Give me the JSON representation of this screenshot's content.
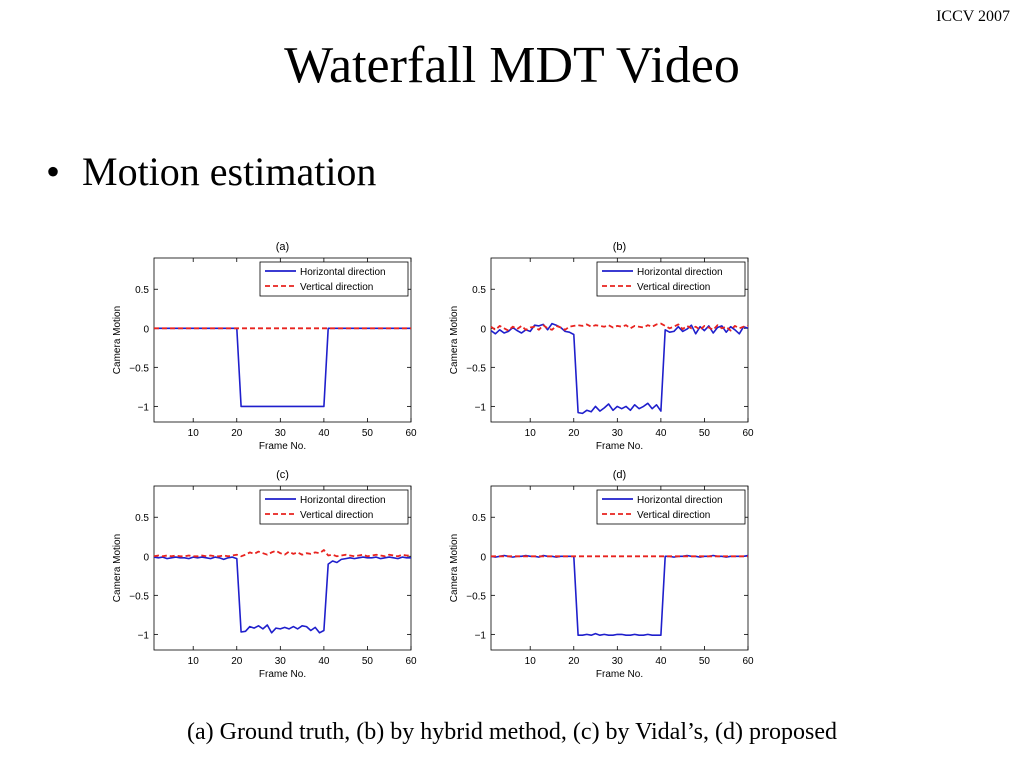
{
  "header": {
    "conference": "ICCV 2007",
    "title": "Waterfall MDT Video"
  },
  "bullets": [
    {
      "marker": "•",
      "text": "Motion estimation"
    }
  ],
  "caption": "(a) Ground truth, (b) by hybrid method, (c) by Vidal’s, (d) proposed",
  "colors": {
    "horizontal": "#1f1fcc",
    "vertical": "#e8231f"
  },
  "chart_data": [
    {
      "type": "line",
      "title": "(a)",
      "xlabel": "Frame No.",
      "ylabel": "Camera Motion",
      "xlim": [
        1,
        60
      ],
      "ylim": [
        -1.2,
        0.9
      ],
      "xticks": [
        10,
        20,
        30,
        40,
        50,
        60
      ],
      "yticks": [
        -1,
        -0.5,
        0,
        0.5
      ],
      "ytick_labels": [
        "−1",
        "−0.5",
        "0",
        "0.5"
      ],
      "legend": "top-right",
      "grid": false,
      "series": [
        {
          "name": "Horizontal direction",
          "style": "solid",
          "color": "#1f1fcc",
          "x": [
            1,
            2,
            3,
            4,
            5,
            6,
            7,
            8,
            9,
            10,
            11,
            12,
            13,
            14,
            15,
            16,
            17,
            18,
            19,
            20,
            21,
            22,
            23,
            24,
            25,
            26,
            27,
            28,
            29,
            30,
            31,
            32,
            33,
            34,
            35,
            36,
            37,
            38,
            39,
            40,
            41,
            42,
            43,
            44,
            45,
            46,
            47,
            48,
            49,
            50,
            51,
            52,
            53,
            54,
            55,
            56,
            57,
            58,
            59,
            60
          ],
          "y": [
            0,
            0,
            0,
            0,
            0,
            0,
            0,
            0,
            0,
            0,
            0,
            0,
            0,
            0,
            0,
            0,
            0,
            0,
            0,
            0,
            -1,
            -1,
            -1,
            -1,
            -1,
            -1,
            -1,
            -1,
            -1,
            -1,
            -1,
            -1,
            -1,
            -1,
            -1,
            -1,
            -1,
            -1,
            -1,
            -1,
            0,
            0,
            0,
            0,
            0,
            0,
            0,
            0,
            0,
            0,
            0,
            0,
            0,
            0,
            0,
            0,
            0,
            0,
            0,
            0
          ]
        },
        {
          "name": "Vertical direction",
          "style": "dashed",
          "color": "#e8231f",
          "x": [
            1,
            60
          ],
          "y": [
            0,
            0
          ]
        }
      ]
    },
    {
      "type": "line",
      "title": "(b)",
      "xlabel": "Frame No.",
      "ylabel": "Camera Motion",
      "xlim": [
        1,
        60
      ],
      "ylim": [
        -1.2,
        0.9
      ],
      "xticks": [
        10,
        20,
        30,
        40,
        50,
        60
      ],
      "yticks": [
        -1,
        -0.5,
        0,
        0.5
      ],
      "ytick_labels": [
        "−1",
        "−0.5",
        "0",
        "0.5"
      ],
      "legend": "top-right",
      "grid": false,
      "series": [
        {
          "name": "Horizontal direction",
          "style": "solid",
          "color": "#1f1fcc",
          "x": [
            1,
            2,
            3,
            4,
            5,
            6,
            7,
            8,
            9,
            10,
            11,
            12,
            13,
            14,
            15,
            16,
            17,
            18,
            19,
            20,
            21,
            22,
            23,
            24,
            25,
            26,
            27,
            28,
            29,
            30,
            31,
            32,
            33,
            34,
            35,
            36,
            37,
            38,
            39,
            40,
            41,
            42,
            43,
            44,
            45,
            46,
            47,
            48,
            49,
            50,
            51,
            52,
            53,
            54,
            55,
            56,
            57,
            58,
            59,
            60
          ],
          "y": [
            -0.03,
            -0.07,
            -0.02,
            -0.06,
            -0.04,
            0.01,
            -0.03,
            -0.06,
            -0.02,
            -0.04,
            0.04,
            0.03,
            0.05,
            -0.02,
            0.06,
            0.04,
            0.01,
            -0.04,
            -0.05,
            -0.08,
            -1.08,
            -1.09,
            -1.05,
            -1.07,
            -1.0,
            -1.06,
            -1.02,
            -0.97,
            -1.05,
            -1.0,
            -1.03,
            -1.0,
            -1.05,
            -0.98,
            -1.03,
            -1.0,
            -0.96,
            -1.03,
            -0.98,
            -1.06,
            -0.02,
            -0.05,
            -0.04,
            0.02,
            -0.04,
            -0.01,
            0.04,
            -0.07,
            0.02,
            -0.03,
            0.03,
            -0.06,
            0.01,
            0.03,
            -0.05,
            0.02,
            -0.02,
            -0.07,
            0.02,
            0.0
          ]
        },
        {
          "name": "Vertical direction",
          "style": "dashed",
          "color": "#e8231f",
          "x": [
            1,
            2,
            3,
            4,
            5,
            6,
            7,
            8,
            9,
            10,
            11,
            12,
            13,
            14,
            15,
            16,
            17,
            18,
            19,
            20,
            21,
            22,
            23,
            24,
            25,
            26,
            27,
            28,
            29,
            30,
            31,
            32,
            33,
            34,
            35,
            36,
            37,
            38,
            39,
            40,
            41,
            42,
            43,
            44,
            45,
            46,
            47,
            48,
            49,
            50,
            51,
            52,
            53,
            54,
            55,
            56,
            57,
            58,
            59,
            60
          ],
          "y": [
            0.02,
            -0.02,
            0.03,
            0.0,
            -0.03,
            0.02,
            -0.01,
            0.03,
            -0.02,
            0.01,
            0.02,
            -0.02,
            0.04,
            0.0,
            -0.02,
            0.03,
            0.01,
            -0.02,
            0.02,
            0.03,
            0.04,
            0.03,
            0.05,
            0.02,
            0.04,
            0.03,
            0.02,
            0.04,
            0.01,
            0.03,
            0.02,
            0.04,
            0.0,
            0.03,
            0.02,
            0.01,
            0.04,
            0.02,
            0.05,
            0.06,
            0.03,
            0.0,
            0.02,
            0.05,
            -0.01,
            0.03,
            0.0,
            0.02,
            -0.02,
            0.03,
            0.01,
            -0.02,
            0.04,
            0.0,
            0.02,
            -0.03,
            0.03,
            0.0,
            0.02,
            0.03
          ]
        }
      ]
    },
    {
      "type": "line",
      "title": "(c)",
      "xlabel": "Frame No.",
      "ylabel": "Camera Motion",
      "xlim": [
        1,
        60
      ],
      "ylim": [
        -1.2,
        0.9
      ],
      "xticks": [
        10,
        20,
        30,
        40,
        50,
        60
      ],
      "yticks": [
        -1,
        -0.5,
        0,
        0.5
      ],
      "ytick_labels": [
        "−1",
        "−0.5",
        "0",
        "0.5"
      ],
      "legend": "top-right",
      "grid": false,
      "series": [
        {
          "name": "Horizontal direction",
          "style": "solid",
          "color": "#1f1fcc",
          "x": [
            1,
            2,
            3,
            4,
            5,
            6,
            7,
            8,
            9,
            10,
            11,
            12,
            13,
            14,
            15,
            16,
            17,
            18,
            19,
            20,
            21,
            22,
            23,
            24,
            25,
            26,
            27,
            28,
            29,
            30,
            31,
            32,
            33,
            34,
            35,
            36,
            37,
            38,
            39,
            40,
            41,
            42,
            43,
            44,
            45,
            46,
            47,
            48,
            49,
            50,
            51,
            52,
            53,
            54,
            55,
            56,
            57,
            58,
            59,
            60
          ],
          "y": [
            -0.01,
            -0.02,
            -0.01,
            -0.03,
            -0.02,
            -0.01,
            -0.02,
            -0.02,
            -0.03,
            -0.01,
            -0.02,
            -0.01,
            -0.02,
            -0.03,
            -0.01,
            -0.02,
            -0.04,
            -0.02,
            -0.01,
            -0.03,
            -0.97,
            -0.96,
            -0.9,
            -0.92,
            -0.89,
            -0.93,
            -0.88,
            -0.98,
            -0.92,
            -0.93,
            -0.91,
            -0.93,
            -0.9,
            -0.93,
            -0.89,
            -0.9,
            -0.95,
            -0.91,
            -0.98,
            -0.95,
            -0.1,
            -0.06,
            -0.08,
            -0.04,
            -0.03,
            -0.02,
            -0.03,
            -0.02,
            -0.01,
            -0.02,
            -0.02,
            -0.01,
            -0.03,
            -0.02,
            -0.01,
            -0.02,
            -0.03,
            -0.01,
            -0.02,
            -0.02
          ]
        },
        {
          "name": "Vertical direction",
          "style": "dashed",
          "color": "#e8231f",
          "x": [
            1,
            2,
            3,
            4,
            5,
            6,
            7,
            8,
            9,
            10,
            11,
            12,
            13,
            14,
            15,
            16,
            17,
            18,
            19,
            20,
            21,
            22,
            23,
            24,
            25,
            26,
            27,
            28,
            29,
            30,
            31,
            32,
            33,
            34,
            35,
            36,
            37,
            38,
            39,
            40,
            41,
            42,
            43,
            44,
            45,
            46,
            47,
            48,
            49,
            50,
            51,
            52,
            53,
            54,
            55,
            56,
            57,
            58,
            59,
            60
          ],
          "y": [
            0.0,
            0.01,
            0.0,
            0.01,
            0.0,
            0.01,
            0.0,
            0.0,
            0.01,
            0.0,
            0.0,
            0.01,
            0.0,
            0.01,
            0.0,
            0.0,
            0.01,
            0.0,
            0.01,
            0.02,
            0.0,
            0.02,
            0.05,
            0.03,
            0.06,
            0.04,
            0.02,
            0.05,
            0.07,
            0.04,
            0.02,
            0.06,
            0.03,
            0.05,
            0.02,
            0.04,
            0.03,
            0.05,
            0.04,
            0.08,
            0.01,
            0.02,
            0.0,
            0.01,
            0.02,
            0.01,
            0.0,
            0.01,
            0.02,
            0.0,
            0.01,
            0.02,
            0.01,
            0.0,
            0.02,
            0.01,
            0.0,
            0.02,
            0.01,
            0.01
          ]
        }
      ]
    },
    {
      "type": "line",
      "title": "(d)",
      "xlabel": "Frame No.",
      "ylabel": "Camera Motion",
      "xlim": [
        1,
        60
      ],
      "ylim": [
        -1.2,
        0.9
      ],
      "xticks": [
        10,
        20,
        30,
        40,
        50,
        60
      ],
      "yticks": [
        -1,
        -0.5,
        0,
        0.5
      ],
      "ytick_labels": [
        "−1",
        "−0.5",
        "0",
        "0.5"
      ],
      "legend": "top-right",
      "grid": false,
      "series": [
        {
          "name": "Horizontal direction",
          "style": "solid",
          "color": "#1f1fcc",
          "x": [
            1,
            2,
            3,
            4,
            5,
            6,
            7,
            8,
            9,
            10,
            11,
            12,
            13,
            14,
            15,
            16,
            17,
            18,
            19,
            20,
            21,
            22,
            23,
            24,
            25,
            26,
            27,
            28,
            29,
            30,
            31,
            32,
            33,
            34,
            35,
            36,
            37,
            38,
            39,
            40,
            41,
            42,
            43,
            44,
            45,
            46,
            47,
            48,
            49,
            50,
            51,
            52,
            53,
            54,
            55,
            56,
            57,
            58,
            59,
            60
          ],
          "y": [
            0.0,
            -0.01,
            0.0,
            0.01,
            0.0,
            -0.01,
            0.0,
            0.0,
            0.01,
            0.0,
            0.0,
            -0.01,
            0.01,
            0.0,
            0.0,
            -0.01,
            0.0,
            0.0,
            0.0,
            0.0,
            -1.01,
            -1.01,
            -1.0,
            -1.01,
            -0.99,
            -1.01,
            -1.0,
            -1.01,
            -1.01,
            -1.0,
            -1.0,
            -1.01,
            -1.01,
            -1.0,
            -1.01,
            -1.01,
            -1.0,
            -1.01,
            -1.01,
            -1.01,
            0.0,
            0.0,
            -0.01,
            0.0,
            0.0,
            0.01,
            0.0,
            0.0,
            -0.01,
            0.0,
            0.0,
            0.01,
            0.0,
            0.0,
            -0.01,
            0.0,
            0.0,
            0.0,
            0.0,
            0.01
          ]
        },
        {
          "name": "Vertical direction",
          "style": "dashed",
          "color": "#e8231f",
          "x": [
            1,
            60
          ],
          "y": [
            0,
            0
          ]
        }
      ]
    }
  ]
}
